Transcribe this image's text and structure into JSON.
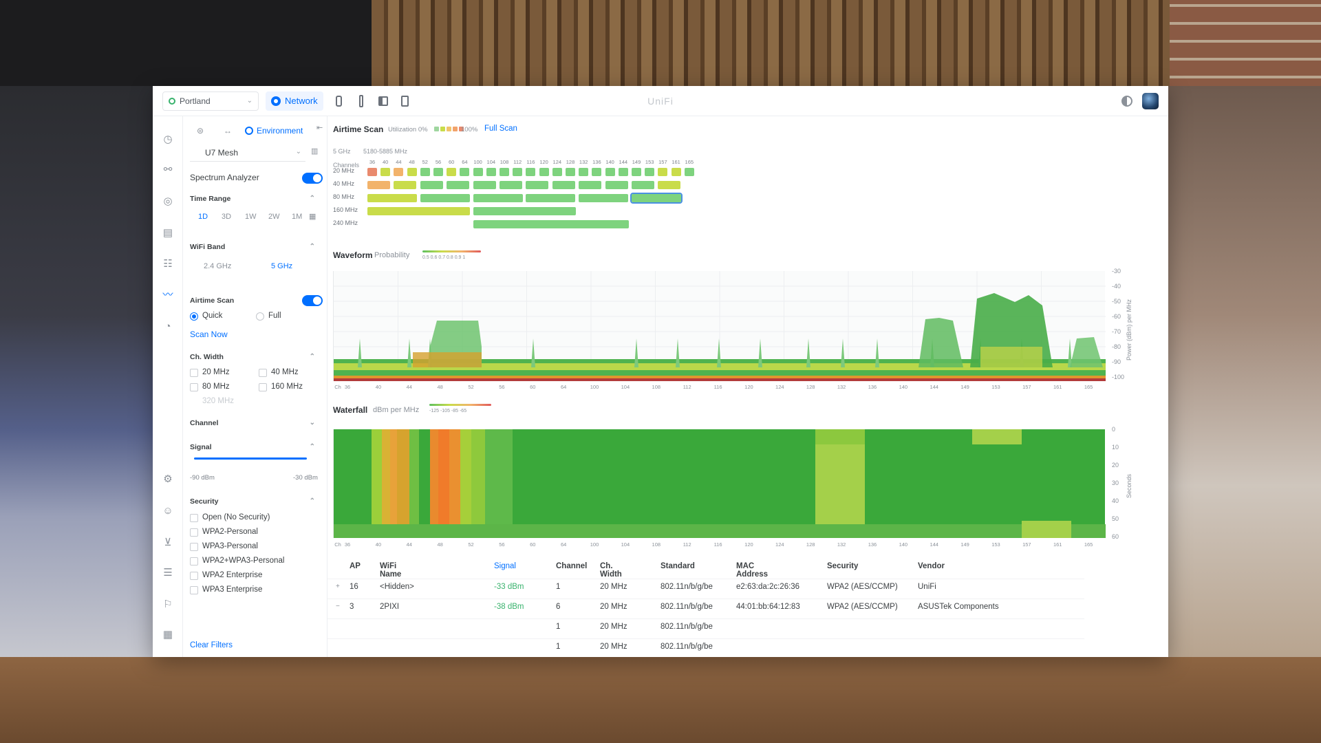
{
  "app": {
    "title": "UniFi",
    "site": "Portland",
    "active_app": "Network"
  },
  "filters": {
    "environment_tab": "Environment",
    "device": "U7 Mesh",
    "spectrum_analyzer": {
      "label": "Spectrum Analyzer",
      "on": true
    },
    "time_range": {
      "title": "Time Range",
      "options": [
        "1D",
        "3D",
        "1W",
        "2W",
        "1M"
      ],
      "selected": "1D"
    },
    "wifi_band": {
      "title": "WiFi Band",
      "options": [
        "2.4 GHz",
        "5 GHz"
      ],
      "selected": "5 GHz"
    },
    "airtime_scan": {
      "title": "Airtime Scan",
      "on": true,
      "quick": "Quick",
      "full": "Full",
      "selected": "Quick",
      "scan_now": "Scan Now"
    },
    "ch_width": {
      "title": "Ch. Width",
      "options": [
        "20 MHz",
        "40 MHz",
        "80 MHz",
        "160 MHz",
        "320 MHz"
      ]
    },
    "channel": {
      "title": "Channel"
    },
    "signal": {
      "title": "Signal",
      "min": "-90 dBm",
      "max": "-30 dBm"
    },
    "security": {
      "title": "Security",
      "options": [
        "Open (No Security)",
        "WPA2-Personal",
        "WPA3-Personal",
        "WPA2+WPA3-Personal",
        "WPA2 Enterprise",
        "WPA3 Enterprise"
      ]
    },
    "clear_filters": "Clear Filters"
  },
  "airtime": {
    "title": "Airtime Scan",
    "utilization_label": "Utilization 0%",
    "utilization_max": "100%",
    "full_scan": "Full Scan",
    "band_label": "5 GHz",
    "band_range": "5180-5885 MHz",
    "channels_label": "Channels",
    "channels": [
      "36",
      "40",
      "44",
      "48",
      "52",
      "56",
      "60",
      "64",
      "100",
      "104",
      "108",
      "112",
      "116",
      "120",
      "124",
      "128",
      "132",
      "136",
      "140",
      "144",
      "149",
      "153",
      "157",
      "161",
      "165"
    ],
    "width_rows": [
      "20 MHz",
      "40 MHz",
      "80 MHz",
      "160 MHz",
      "240 MHz"
    ],
    "colors": {
      "green": "#7ed37e",
      "yellow": "#c9dc4a",
      "orange": "#f2b36b",
      "red": "#e98a6e",
      "selected": "#4a90e2"
    }
  },
  "waveform": {
    "title": "Waveform",
    "mode": "Probability",
    "legend_ticks": "0.5 0.6 0.7 0.8 0.9 1",
    "y_ticks": [
      "-30",
      "-40",
      "-50",
      "-60",
      "-70",
      "-80",
      "-90",
      "-100"
    ],
    "y_title": "Power (dBm) per MHz",
    "x_prefix": "Ch",
    "x_ticks": [
      "36",
      "40",
      "44",
      "48",
      "52",
      "56",
      "60",
      "64",
      "100",
      "104",
      "108",
      "112",
      "116",
      "120",
      "124",
      "128",
      "132",
      "136",
      "140",
      "144",
      "149",
      "153",
      "157",
      "161",
      "165"
    ]
  },
  "waterfall": {
    "title": "Waterfall",
    "unit": "dBm per MHz",
    "legend_ticks": "-125  -105  -85  -65",
    "y_ticks": [
      "0",
      "10",
      "20",
      "30",
      "40",
      "50",
      "60"
    ],
    "y_title": "Seconds",
    "x_prefix": "Ch"
  },
  "table": {
    "headers": {
      "ap": "AP",
      "name": "WiFi Name",
      "signal": "Signal",
      "channel": "Channel",
      "width": "Ch. Width",
      "standard": "Standard",
      "mac": "MAC Address",
      "security": "Security",
      "vendor": "Vendor"
    },
    "rows": [
      {
        "expand": "+",
        "ap": "16",
        "name": "<Hidden>",
        "signal": "-33 dBm",
        "channel": "1",
        "width": "20 MHz",
        "standard": "802.11n/b/g/be",
        "mac": "e2:63:da:2c:26:36",
        "security": "WPA2 (AES/CCMP)",
        "vendor": "UniFi"
      },
      {
        "expand": "−",
        "ap": "3",
        "name": "2PIXI",
        "signal": "-38 dBm",
        "channel": "6",
        "width": "20 MHz",
        "standard": "802.11n/b/g/be",
        "mac": "44:01:bb:64:12:83",
        "security": "WPA2 (AES/CCMP)",
        "vendor": "ASUSTek Components"
      },
      {
        "expand": "",
        "ap": "",
        "name": "",
        "signal": "",
        "channel": "1",
        "width": "20 MHz",
        "standard": "802.11n/b/g/be",
        "mac": "",
        "security": "",
        "vendor": ""
      },
      {
        "expand": "",
        "ap": "",
        "name": "",
        "signal": "",
        "channel": "1",
        "width": "20 MHz",
        "standard": "802.11n/b/g/be",
        "mac": "",
        "security": "",
        "vendor": ""
      }
    ]
  }
}
